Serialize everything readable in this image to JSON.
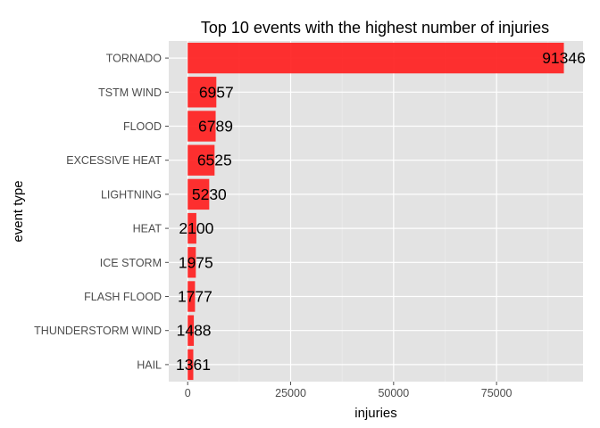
{
  "chart_data": {
    "type": "bar",
    "orientation": "horizontal",
    "title": "Top 10 events with the highest number of injuries",
    "xlabel": "injuries",
    "ylabel": "event type",
    "categories": [
      "TORNADO",
      "TSTM WIND",
      "FLOOD",
      "EXCESSIVE HEAT",
      "LIGHTNING",
      "HEAT",
      "ICE STORM",
      "FLASH FLOOD",
      "THUNDERSTORM WIND",
      "HAIL"
    ],
    "values": [
      91346,
      6957,
      6789,
      6525,
      5230,
      2100,
      1975,
      1777,
      1488,
      1361
    ],
    "data_labels": [
      "91346",
      "6957",
      "6789",
      "6525",
      "5230",
      "2100",
      "1975",
      "1777",
      "1488",
      "1361"
    ],
    "xlim": [
      -4600,
      96000
    ],
    "x_ticks": [
      0,
      25000,
      50000,
      75000
    ],
    "x_tick_labels": [
      "0",
      "25000",
      "50000",
      "75000"
    ],
    "grid": true,
    "legend": "none",
    "colors": {
      "bar": "#ff2020",
      "panel": "#e3e3e3",
      "grid_major": "#ffffff",
      "grid_minor": "#ececec"
    }
  }
}
